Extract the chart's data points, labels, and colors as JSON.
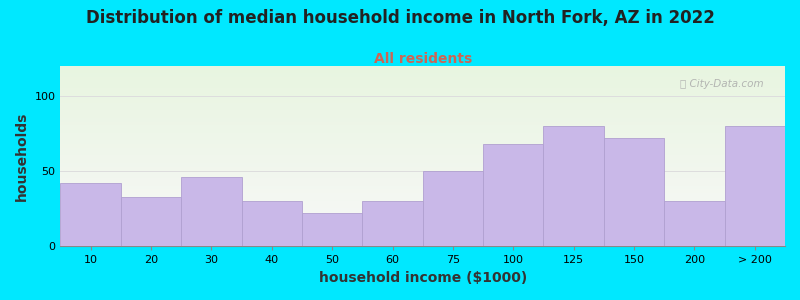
{
  "title": "Distribution of median household income in North Fork, AZ in 2022",
  "subtitle": "All residents",
  "xlabel": "household income ($1000)",
  "ylabel": "households",
  "bar_labels": [
    "10",
    "20",
    "30",
    "40",
    "50",
    "60",
    "75",
    "100",
    "125",
    "150",
    "200",
    "> 200"
  ],
  "bar_values": [
    42,
    33,
    46,
    30,
    22,
    30,
    50,
    68,
    80,
    72,
    30,
    80
  ],
  "bar_color": "#c9b8e8",
  "bar_edge_color": "#b0a0d0",
  "background_color": "#00e8ff",
  "plot_bg_top_color": "#e8f5e0",
  "plot_bg_bottom_color": "#f8f8f8",
  "ylim": [
    0,
    120
  ],
  "yticks": [
    0,
    50,
    100
  ],
  "title_fontsize": 12,
  "subtitle_fontsize": 10,
  "subtitle_color": "#cc6655",
  "axis_label_fontsize": 10,
  "tick_fontsize": 8,
  "watermark_text": "ⓘ City-Data.com",
  "grid_color": "#dddddd"
}
